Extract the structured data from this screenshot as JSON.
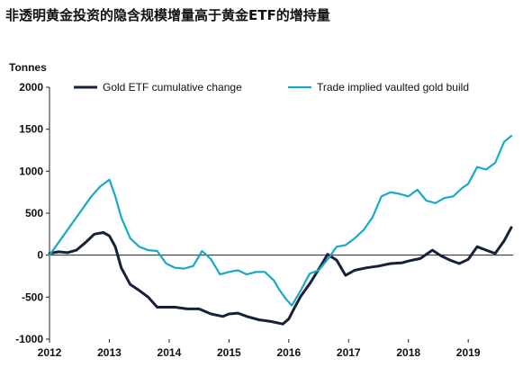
{
  "title": "非透明黄金投资的隐含规模增量高于黄金ETF的增持量",
  "chart_data": {
    "type": "line",
    "title": "非透明黄金投资的隐含规模增量高于黄金ETF的增持量",
    "ylabel": "Tonnes",
    "xlabel": "",
    "ylim": [
      -1000,
      2000
    ],
    "xlim": [
      2012,
      2019.75
    ],
    "yticks": [
      -1000,
      -500,
      0,
      500,
      1000,
      1500,
      2000
    ],
    "xticks": [
      "2012",
      "2013",
      "2014",
      "2015",
      "2016",
      "2017",
      "2018",
      "2019"
    ],
    "grid": false,
    "legend_position": "top",
    "series": [
      {
        "name": "Gold ETF cumulative change",
        "color": "#16223a",
        "x": [
          2012.0,
          2012.15,
          2012.3,
          2012.45,
          2012.6,
          2012.75,
          2012.9,
          2013.0,
          2013.1,
          2013.2,
          2013.35,
          2013.5,
          2013.65,
          2013.8,
          2013.95,
          2014.1,
          2014.3,
          2014.5,
          2014.7,
          2014.9,
          2015.0,
          2015.15,
          2015.3,
          2015.5,
          2015.7,
          2015.9,
          2016.0,
          2016.1,
          2016.2,
          2016.35,
          2016.5,
          2016.65,
          2016.8,
          2016.95,
          2017.1,
          2017.3,
          2017.5,
          2017.7,
          2017.9,
          2018.0,
          2018.2,
          2018.4,
          2018.55,
          2018.7,
          2018.85,
          2019.0,
          2019.15,
          2019.3,
          2019.45,
          2019.6,
          2019.72
        ],
        "y": [
          20,
          40,
          30,
          60,
          150,
          250,
          270,
          230,
          100,
          -150,
          -350,
          -420,
          -500,
          -620,
          -620,
          -620,
          -640,
          -640,
          -700,
          -730,
          -700,
          -690,
          -730,
          -770,
          -790,
          -820,
          -760,
          -620,
          -490,
          -340,
          -170,
          10,
          -60,
          -240,
          -180,
          -150,
          -130,
          -100,
          -90,
          -70,
          -40,
          60,
          -10,
          -60,
          -100,
          -50,
          100,
          60,
          20,
          170,
          330
        ]
      },
      {
        "name": "Trade implied vaulted gold build",
        "color": "#17a9c8",
        "x": [
          2012.0,
          2012.15,
          2012.3,
          2012.5,
          2012.7,
          2012.85,
          2013.0,
          2013.1,
          2013.2,
          2013.35,
          2013.5,
          2013.65,
          2013.8,
          2013.95,
          2014.1,
          2014.25,
          2014.4,
          2014.55,
          2014.7,
          2014.85,
          2015.0,
          2015.15,
          2015.3,
          2015.45,
          2015.6,
          2015.75,
          2015.85,
          2015.95,
          2016.05,
          2016.2,
          2016.35,
          2016.5,
          2016.65,
          2016.8,
          2016.95,
          2017.1,
          2017.25,
          2017.4,
          2017.55,
          2017.7,
          2017.85,
          2018.0,
          2018.15,
          2018.3,
          2018.45,
          2018.6,
          2018.75,
          2018.9,
          2019.0,
          2019.15,
          2019.3,
          2019.45,
          2019.6,
          2019.72
        ],
        "y": [
          0,
          150,
          300,
          500,
          700,
          820,
          900,
          700,
          450,
          200,
          100,
          60,
          50,
          -100,
          -150,
          -160,
          -130,
          50,
          -50,
          -230,
          -200,
          -180,
          -230,
          -200,
          -200,
          -300,
          -420,
          -520,
          -600,
          -420,
          -220,
          -180,
          -50,
          100,
          120,
          200,
          300,
          450,
          700,
          750,
          730,
          700,
          780,
          650,
          620,
          680,
          700,
          800,
          850,
          1050,
          1020,
          1100,
          1350,
          1420
        ]
      }
    ]
  }
}
